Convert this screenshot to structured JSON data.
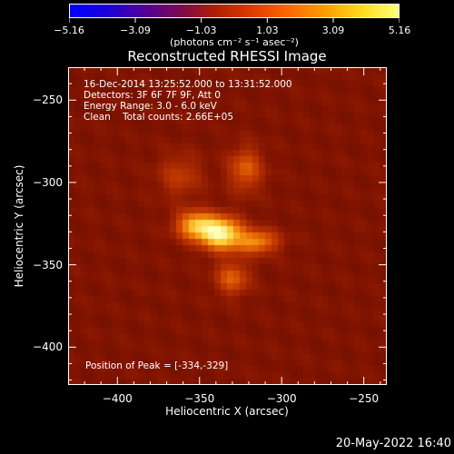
{
  "colorbar": {
    "tick_labels": [
      "−5.16",
      "−3.09",
      "−1.03",
      "1.03",
      "3.09",
      "5.16"
    ],
    "units_line": "(photons cm⁻² s⁻¹ asec⁻²)",
    "stops": [
      "#0000ff",
      "#1a00d8",
      "#50009a",
      "#7a0a50",
      "#b02000",
      "#e03c00",
      "#ff6a00",
      "#ffa000",
      "#ffdd20",
      "#ffff80"
    ]
  },
  "chart_data": {
    "type": "heatmap",
    "title": "Reconstructed RHESSI Image",
    "xlabel": "Heliocentric X (arcsec)",
    "ylabel": "Heliocentric Y (arcsec)",
    "xlim": [
      -430,
      -236
    ],
    "ylim": [
      -423,
      -230
    ],
    "xticks": [
      -400,
      -350,
      -300,
      -250
    ],
    "yticks": [
      -250,
      -300,
      -350,
      -400
    ],
    "xtick_labels": [
      "−400",
      "−350",
      "−300",
      "−250"
    ],
    "ytick_labels": [
      "−250",
      "−300",
      "−350",
      "−400"
    ],
    "colorbar_range": [
      -5.16,
      5.16
    ],
    "background_level": 0.4,
    "sources": [
      {
        "x": -337,
        "y": -331,
        "sx": 9,
        "sy": 7,
        "amp": 3.9
      },
      {
        "x": -353,
        "y": -326,
        "sx": 8,
        "sy": 6,
        "amp": 2.8
      },
      {
        "x": -315,
        "y": -336,
        "sx": 9,
        "sy": 5,
        "amp": 2.4
      },
      {
        "x": -322,
        "y": -292,
        "sx": 7,
        "sy": 9,
        "amp": 1.8
      },
      {
        "x": -330,
        "y": -358,
        "sx": 7,
        "sy": 7,
        "amp": 1.8
      },
      {
        "x": -362,
        "y": -296,
        "sx": 9,
        "sy": 9,
        "amp": 1.1
      }
    ],
    "annotations": {
      "time_range": "16-Dec-2014 13:25:52.000 to 13:31:52.000",
      "detectors": "Detectors: 3F 6F 7F 9F, Att 0",
      "energy_range": "Energy Range: 3.0 - 6.0 keV",
      "method": "Clean",
      "total_counts": "Total counts: 2.66E+05",
      "peak_position": "Position of Peak = [-334,-329]"
    }
  },
  "footer": {
    "timestamp": "20-May-2022 16:40"
  }
}
